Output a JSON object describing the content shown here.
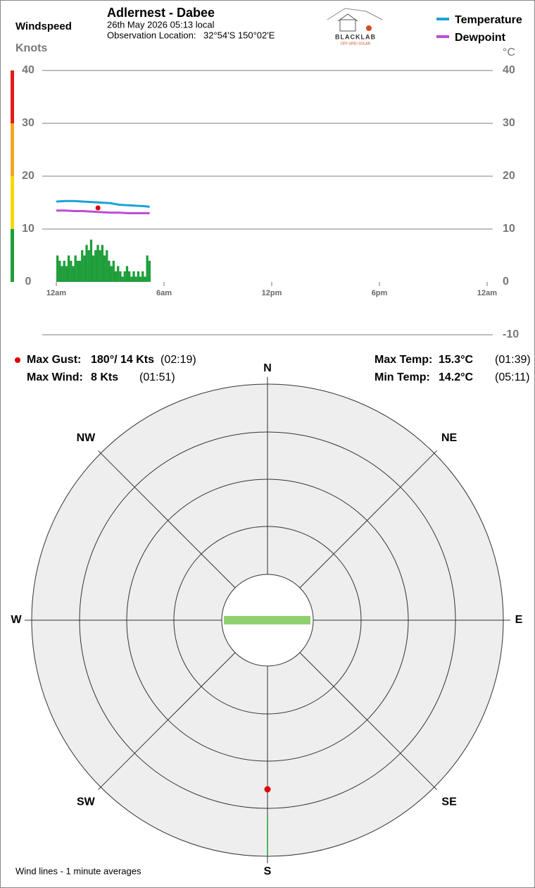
{
  "header": {
    "title": "Adlernest - Dabee",
    "date": "26th May 2026  05:13 local",
    "location_label": "Observation Location:",
    "location": "32°54'S 150°02'E",
    "logo": "BLACKLAB",
    "logo_sub": "OFF GRID SOLAR"
  },
  "chart_data": {
    "type": "line",
    "y_title": "Windspeed",
    "y_unit": "Knots",
    "y2_unit": "°C",
    "ylim": [
      0,
      40
    ],
    "yticks": [
      0,
      10,
      20,
      30,
      40
    ],
    "y2lim": [
      -10,
      40
    ],
    "y2ticks": [
      -10,
      0,
      10,
      20,
      30,
      40
    ],
    "xlim": [
      0,
      24
    ],
    "xticks": [
      {
        "value": 0,
        "label": "12am"
      },
      {
        "value": 6,
        "label": "6am"
      },
      {
        "value": 12,
        "label": "12pm"
      },
      {
        "value": 18,
        "label": "6pm"
      },
      {
        "value": 24,
        "label": "12am"
      }
    ],
    "series": [
      {
        "name": "Temperature",
        "color": "#1aa3d8",
        "axis": "y2",
        "x": [
          0,
          0.5,
          1,
          1.5,
          2,
          2.5,
          3,
          3.5,
          4,
          4.5,
          5,
          5.2
        ],
        "values": [
          15.2,
          15.3,
          15.3,
          15.2,
          15.1,
          15.0,
          14.9,
          14.6,
          14.5,
          14.4,
          14.3,
          14.2
        ]
      },
      {
        "name": "Dewpoint",
        "color": "#c04bd8",
        "axis": "y2",
        "x": [
          0,
          0.5,
          1,
          1.5,
          2,
          2.5,
          3,
          3.5,
          4,
          4.5,
          5,
          5.2
        ],
        "values": [
          13.5,
          13.5,
          13.4,
          13.4,
          13.3,
          13.2,
          13.1,
          13.1,
          13.0,
          13.0,
          13.0,
          13.0
        ]
      }
    ],
    "wind": {
      "color": "#1e9e3a",
      "x": [
        0,
        0.125,
        0.25,
        0.375,
        0.5,
        0.625,
        0.75,
        0.875,
        1,
        1.125,
        1.25,
        1.375,
        1.5,
        1.625,
        1.75,
        1.875,
        2,
        2.125,
        2.25,
        2.375,
        2.5,
        2.625,
        2.75,
        2.875,
        3,
        3.125,
        3.25,
        3.375,
        3.5,
        3.625,
        3.75,
        3.875,
        4,
        4.125,
        4.25,
        4.375,
        4.5,
        4.625,
        4.75,
        4.875,
        5,
        5.125
      ],
      "values": [
        5,
        4,
        3,
        4,
        3,
        5,
        4,
        3,
        5,
        4,
        4,
        6,
        5,
        7,
        6,
        8,
        5,
        6,
        7,
        6,
        7,
        5,
        6,
        4,
        3,
        4,
        2,
        3,
        2,
        1,
        2,
        3,
        2,
        1,
        2,
        1,
        2,
        1,
        2,
        1,
        5,
        4
      ]
    },
    "gust": {
      "color": "#e00000",
      "x": 2.32,
      "value": 14
    }
  },
  "stats": {
    "max_gust_label": "Max Gust:",
    "max_gust": "180°/ 14 Kts",
    "max_gust_time": "(02:19)",
    "max_wind_label": "Max Wind:",
    "max_wind": "8 Kts",
    "max_wind_time": "(01:51)",
    "max_temp_label": "Max Temp:",
    "max_temp": "15.3°C",
    "max_temp_time": "(01:39)",
    "min_temp_label": "Min Temp:",
    "min_temp": "14.2°C",
    "min_temp_time": "(05:11)"
  },
  "rose": {
    "directions": [
      "N",
      "NE",
      "E",
      "SE",
      "S",
      "SW",
      "W",
      "NW"
    ],
    "gust_direction": 180,
    "gust_speed": 14
  },
  "footer": "Wind lines - 1 minute averages"
}
